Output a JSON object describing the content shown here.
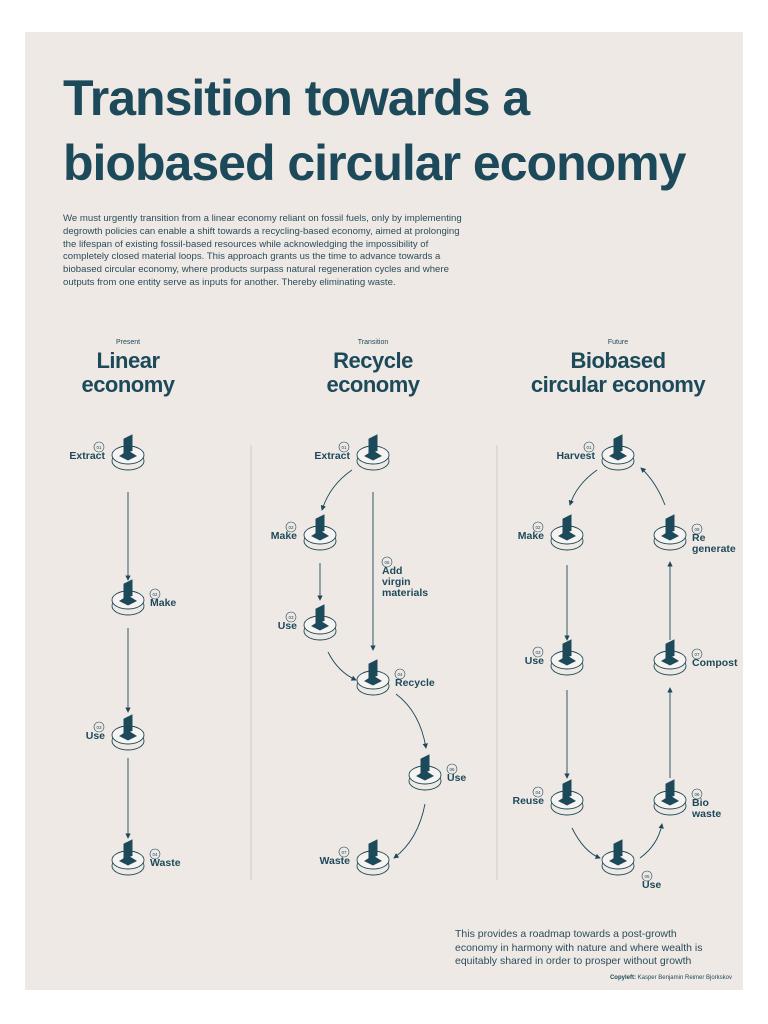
{
  "title_lines": [
    "Transition towards a",
    "biobased circular economy"
  ],
  "intro": "We must urgently transition from a  linear economy reliant on fossil fuels, only by implementing degrowth policies can enable a shift towards a recycling-based economy, aimed at prolonging the lifespan of existing fossil-based resources while acknowledging the impossibility of completely closed material loops. This approach grants us the time to advance towards a biobased circular economy, where products surpass natural regeneration cycles and where outputs from one entity serve as inputs for another. Thereby eliminating waste.",
  "columns": [
    {
      "eyebrow": "Present",
      "heading_lines": [
        "Linear",
        "economy"
      ],
      "nodes": [
        {
          "number": "01",
          "label_lines": [
            "Extract"
          ]
        },
        {
          "number": "02",
          "label_lines": [
            "Make"
          ]
        },
        {
          "number": "03",
          "label_lines": [
            "Use"
          ]
        },
        {
          "number": "04",
          "label_lines": [
            "Waste"
          ]
        }
      ]
    },
    {
      "eyebrow": "Transition",
      "heading_lines": [
        "Recycle",
        "economy"
      ],
      "nodes": [
        {
          "number": "01",
          "label_lines": [
            "Extract"
          ]
        },
        {
          "number": "02",
          "label_lines": [
            "Make"
          ]
        },
        {
          "number": "03",
          "label_lines": [
            "Use"
          ]
        },
        {
          "number": "04",
          "label_lines": [
            "Recycle"
          ]
        },
        {
          "number": "05",
          "label_lines": [
            "Add",
            "virgin",
            "materials"
          ]
        },
        {
          "number": "06",
          "label_lines": [
            "Use"
          ]
        },
        {
          "number": "07",
          "label_lines": [
            "Waste"
          ]
        }
      ]
    },
    {
      "eyebrow": "Future",
      "heading_lines": [
        "Biobased",
        "circular economy"
      ],
      "nodes": [
        {
          "number": "01",
          "label_lines": [
            "Harvest"
          ]
        },
        {
          "number": "02",
          "label_lines": [
            "Make"
          ]
        },
        {
          "number": "03",
          "label_lines": [
            "Use"
          ]
        },
        {
          "number": "04",
          "label_lines": [
            "Reuse"
          ]
        },
        {
          "number": "05",
          "label_lines": [
            "Use"
          ]
        },
        {
          "number": "06",
          "label_lines": [
            "Bio",
            "waste"
          ]
        },
        {
          "number": "07",
          "label_lines": [
            "Compost"
          ]
        },
        {
          "number": "08",
          "label_lines": [
            "Re",
            "generate"
          ]
        }
      ]
    }
  ],
  "footer": "This provides a roadmap towards a post-growth economy in harmony with nature and where wealth is equitably shared in order to prosper without growth",
  "copyleft_label": "Copyleft:",
  "copyleft_name": "Kasper Benjamin Reimer Bjorkskov"
}
